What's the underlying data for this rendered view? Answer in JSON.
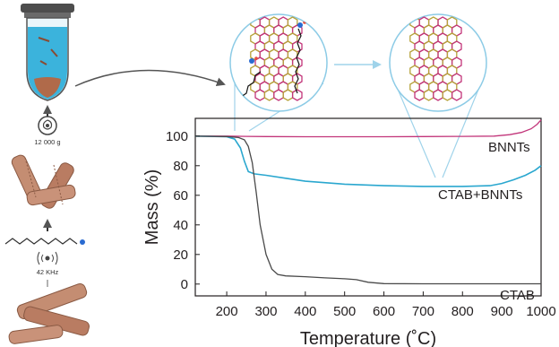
{
  "chart_data": {
    "type": "line",
    "xlabel": "Temperature (˚C)",
    "ylabel": "Mass (%)",
    "xlim": [
      120,
      1000
    ],
    "ylim": [
      -8,
      112
    ],
    "xticks": [
      200,
      300,
      400,
      500,
      600,
      700,
      800,
      900,
      1000
    ],
    "yticks": [
      0,
      20,
      40,
      60,
      80,
      100
    ],
    "series": [
      {
        "name": "BNNTs",
        "color": "#c2357a",
        "x": [
          120,
          200,
          250,
          300,
          400,
          500,
          600,
          700,
          800,
          880,
          920,
          950,
          975,
          990,
          1000
        ],
        "y": [
          100,
          100,
          99.8,
          99.7,
          99.6,
          99.6,
          99.6,
          99.7,
          99.8,
          100,
          101,
          102.5,
          105,
          108,
          111
        ]
      },
      {
        "name": "CTAB+BNNTs",
        "color": "#2aa7cf",
        "x": [
          120,
          200,
          220,
          235,
          245,
          255,
          270,
          300,
          350,
          400,
          500,
          600,
          700,
          800,
          870,
          900,
          930,
          960,
          985,
          1000
        ],
        "y": [
          100,
          99.6,
          98,
          92,
          83,
          76,
          74.5,
          73.5,
          71.5,
          69.5,
          67.5,
          66.5,
          66,
          66,
          66.5,
          68,
          70.5,
          73.5,
          77,
          80
        ]
      },
      {
        "name": "CTAB",
        "color": "#4a4a4a",
        "x": [
          120,
          200,
          230,
          245,
          255,
          265,
          275,
          285,
          300,
          315,
          330,
          350,
          400,
          450,
          500,
          530,
          560,
          600,
          700,
          800,
          900,
          1000
        ],
        "y": [
          100,
          99.7,
          99,
          97.5,
          93,
          82,
          62,
          40,
          20,
          10,
          6.5,
          5.5,
          5,
          4.2,
          3.6,
          3,
          1.2,
          0.3,
          0.2,
          0.2,
          0.2,
          0.2
        ]
      }
    ]
  },
  "schematic": {
    "centrifuge_label": "12 000 g",
    "sonication_label": "42 KHz"
  }
}
